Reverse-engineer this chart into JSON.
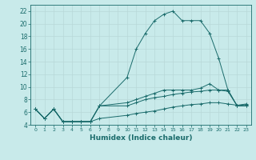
{
  "xlabel": "Humidex (Indice chaleur)",
  "background_color": "#c8eaea",
  "grid_color": "#b8d8d8",
  "line_color": "#1a6b6b",
  "xlim": [
    -0.5,
    23.5
  ],
  "ylim": [
    4,
    23
  ],
  "yticks": [
    4,
    6,
    8,
    10,
    12,
    14,
    16,
    18,
    20,
    22
  ],
  "xticks": [
    0,
    1,
    2,
    3,
    4,
    5,
    6,
    7,
    8,
    9,
    10,
    11,
    12,
    13,
    14,
    15,
    16,
    17,
    18,
    19,
    20,
    21,
    22,
    23
  ],
  "xtick_labels": [
    "0",
    "1",
    "2",
    "3",
    "4",
    "5",
    "6",
    "7",
    "8",
    "9",
    "10",
    "11",
    "12",
    "13",
    "14",
    "15",
    "16",
    "17",
    "18",
    "19",
    "20",
    "21",
    "22",
    "23"
  ],
  "series": [
    {
      "x": [
        0,
        1,
        2,
        3,
        4,
        5,
        6,
        7,
        10,
        11,
        12,
        13,
        14,
        15,
        16,
        17,
        18,
        19,
        20,
        21,
        22,
        23
      ],
      "y": [
        6.5,
        5.0,
        6.5,
        4.5,
        4.5,
        4.5,
        4.5,
        7.0,
        11.5,
        16.0,
        18.5,
        20.5,
        21.5,
        22.0,
        20.5,
        20.5,
        20.5,
        18.5,
        14.5,
        9.5,
        7.0,
        7.0
      ]
    },
    {
      "x": [
        0,
        1,
        2,
        3,
        4,
        5,
        6,
        7,
        10,
        11,
        12,
        13,
        14,
        15,
        16,
        17,
        18,
        19,
        20,
        21,
        22,
        23
      ],
      "y": [
        6.5,
        5.0,
        6.5,
        4.5,
        4.5,
        4.5,
        4.5,
        7.0,
        7.5,
        8.0,
        8.5,
        9.0,
        9.5,
        9.5,
        9.5,
        9.5,
        9.8,
        10.5,
        9.5,
        9.5,
        7.0,
        7.0
      ]
    },
    {
      "x": [
        0,
        1,
        2,
        3,
        4,
        5,
        6,
        7,
        10,
        11,
        12,
        13,
        14,
        15,
        16,
        17,
        18,
        19,
        20,
        21,
        22,
        23
      ],
      "y": [
        6.5,
        5.0,
        6.5,
        4.5,
        4.5,
        4.5,
        4.5,
        7.0,
        7.0,
        7.5,
        8.0,
        8.3,
        8.5,
        8.8,
        9.0,
        9.2,
        9.3,
        9.5,
        9.5,
        9.3,
        7.0,
        7.2
      ]
    },
    {
      "x": [
        0,
        1,
        2,
        3,
        4,
        5,
        6,
        7,
        10,
        11,
        12,
        13,
        14,
        15,
        16,
        17,
        18,
        19,
        20,
        21,
        22,
        23
      ],
      "y": [
        6.5,
        5.0,
        6.5,
        4.5,
        4.5,
        4.5,
        4.5,
        5.0,
        5.5,
        5.8,
        6.0,
        6.2,
        6.5,
        6.8,
        7.0,
        7.2,
        7.3,
        7.5,
        7.5,
        7.3,
        7.1,
        7.3
      ]
    }
  ]
}
